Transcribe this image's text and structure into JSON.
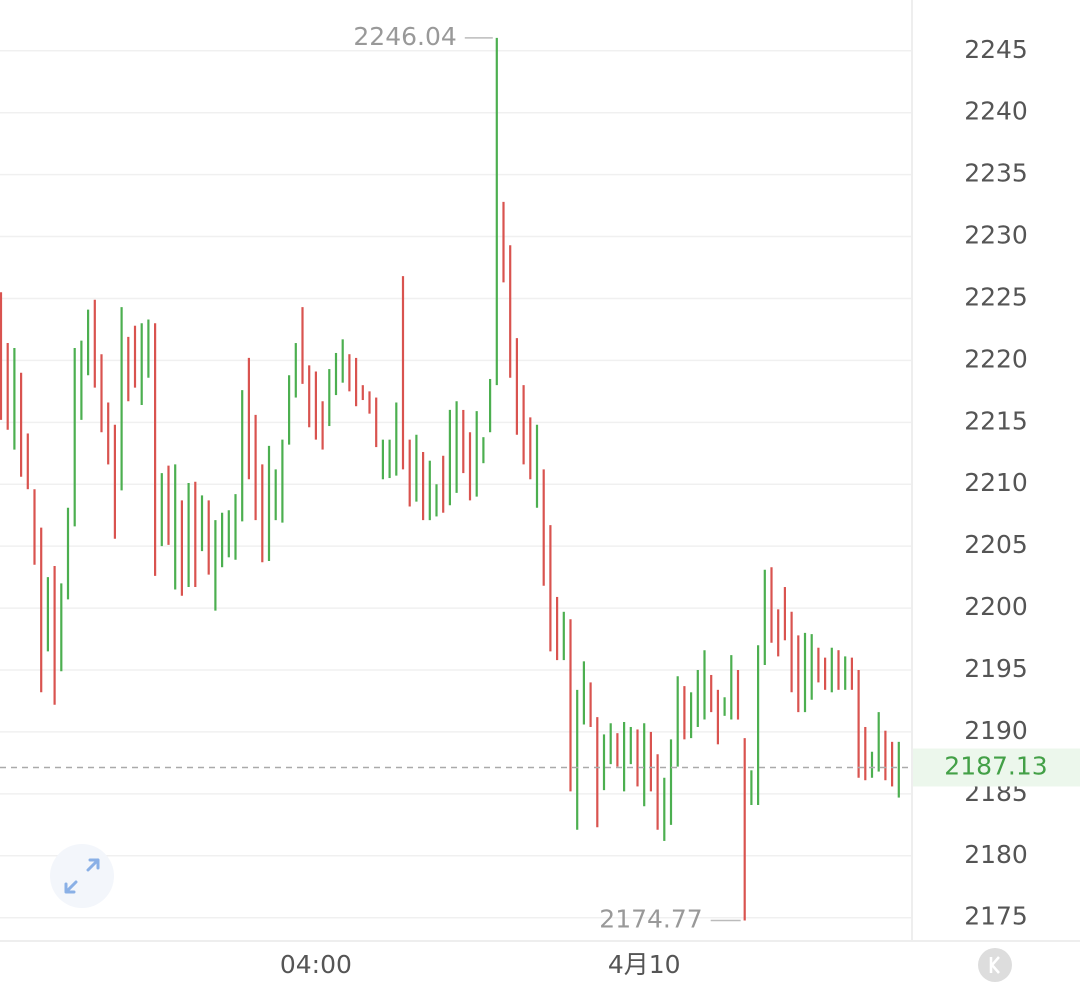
{
  "chart_data": {
    "type": "range_bar",
    "categories": [
      null,
      null,
      null,
      null,
      null,
      null,
      null,
      null,
      null,
      null,
      null,
      null,
      null,
      null,
      null,
      null,
      null,
      null,
      null,
      null,
      null,
      null,
      null,
      null,
      null,
      null,
      null,
      null,
      null,
      null,
      null,
      null,
      null,
      null,
      null,
      null,
      null,
      null,
      null,
      null,
      null,
      null,
      null,
      null,
      null,
      null,
      null,
      "04:00",
      null,
      null,
      null,
      null,
      null,
      null,
      null,
      null,
      null,
      null,
      null,
      null,
      null,
      null,
      null,
      null,
      null,
      null,
      null,
      null,
      null,
      null,
      null,
      null,
      null,
      null,
      null,
      null,
      null,
      null,
      null,
      null,
      null,
      null,
      null,
      null,
      null,
      null,
      null,
      null,
      null,
      null,
      null,
      null,
      null,
      null,
      null,
      null,
      "4月10",
      null,
      null,
      null,
      null,
      null,
      null,
      null,
      null,
      null,
      null,
      null,
      null,
      null,
      null,
      null,
      null,
      null,
      null,
      null,
      null,
      null,
      null,
      null,
      null,
      null,
      null,
      null,
      null,
      null,
      null,
      null,
      null,
      null,
      null,
      null,
      null,
      null,
      null
    ],
    "high": [
      2225.5,
      2221.4,
      2221.0,
      2219.0,
      2214.1,
      2209.6,
      2206.5,
      2202.5,
      2203.4,
      2202.0,
      2208.1,
      2221.0,
      2221.6,
      2224.1,
      2224.9,
      2220.5,
      2216.6,
      2214.8,
      2224.3,
      2221.9,
      2222.8,
      2223.0,
      2223.3,
      2223.0,
      2210.9,
      2211.5,
      2211.6,
      2208.7,
      2210.1,
      2210.2,
      2209.1,
      2208.7,
      2207.1,
      2207.7,
      2207.9,
      2209.2,
      2217.6,
      2220.2,
      2215.6,
      2211.6,
      2213.1,
      2211.2,
      2213.6,
      2218.8,
      2221.4,
      2224.3,
      2219.6,
      2219.1,
      2216.7,
      2219.3,
      2220.6,
      2221.7,
      2220.5,
      2220.2,
      2218.0,
      2217.5,
      2217.0,
      2213.6,
      2213.6,
      2216.6,
      2226.8,
      2213.6,
      2214.0,
      2212.6,
      2211.9,
      2210.0,
      2212.3,
      2216.0,
      2216.7,
      2216.0,
      2214.2,
      2215.9,
      2213.8,
      2218.5,
      2246.04,
      2232.8,
      2229.3,
      2221.8,
      2218.0,
      2215.4,
      2214.8,
      2211.2,
      2206.7,
      2200.9,
      2199.7,
      2199.1,
      2193.4,
      2195.7,
      2194.0,
      2191.2,
      2189.8,
      2190.7,
      2189.9,
      2190.8,
      2190.4,
      2190.2,
      2190.7,
      2190.0,
      2188.2,
      2186.3,
      2189.4,
      2194.5,
      2193.7,
      2193.2,
      2195.0,
      2196.6,
      2194.6,
      2193.4,
      2192.8,
      2196.2,
      2195.0,
      2189.5,
      2186.9,
      2197.0,
      2203.1,
      2203.3,
      2199.9,
      2201.7,
      2199.7,
      2197.8,
      2198.0,
      2197.9,
      2196.8,
      2196.0,
      2196.8,
      2196.6,
      2196.1,
      2196.0,
      2195.0,
      2190.4,
      2188.4,
      2191.6,
      2190.1,
      2189.2,
      2189.2
    ],
    "low": [
      2215.2,
      2214.4,
      2212.8,
      2210.6,
      2209.6,
      2203.5,
      2193.2,
      2196.5,
      2192.2,
      2194.9,
      2200.7,
      2206.6,
      2215.2,
      2218.8,
      2217.8,
      2214.2,
      2211.6,
      2205.6,
      2209.5,
      2216.7,
      2217.8,
      2216.4,
      2218.6,
      2202.6,
      2205.0,
      2205.1,
      2201.5,
      2201.0,
      2201.7,
      2201.7,
      2204.6,
      2202.7,
      2199.8,
      2203.3,
      2204.1,
      2203.9,
      2207.0,
      2210.4,
      2207.1,
      2203.7,
      2203.8,
      2207.1,
      2206.9,
      2213.2,
      2217.0,
      2218.1,
      2214.6,
      2213.6,
      2212.8,
      2214.7,
      2217.2,
      2218.2,
      2217.5,
      2216.3,
      2216.8,
      2215.7,
      2213.0,
      2210.4,
      2210.5,
      2210.7,
      2211.2,
      2208.2,
      2208.6,
      2207.1,
      2207.1,
      2207.4,
      2207.7,
      2208.3,
      2209.3,
      2210.9,
      2208.7,
      2209.0,
      2211.7,
      2214.2,
      2218.0,
      2226.3,
      2218.6,
      2214.0,
      2211.6,
      2210.4,
      2208.1,
      2201.8,
      2196.5,
      2195.8,
      2195.8,
      2185.2,
      2182.1,
      2190.6,
      2190.4,
      2182.3,
      2185.3,
      2187.4,
      2187.2,
      2185.2,
      2187.4,
      2185.6,
      2184.0,
      2185.2,
      2182.1,
      2181.2,
      2182.5,
      2187.2,
      2189.4,
      2189.5,
      2190.4,
      2191.0,
      2191.6,
      2189.0,
      2191.3,
      2191.0,
      2191.0,
      2174.77,
      2184.1,
      2184.1,
      2195.4,
      2197.2,
      2196.1,
      2197.4,
      2193.2,
      2191.6,
      2191.6,
      2192.6,
      2194.0,
      2193.4,
      2193.2,
      2193.4,
      2193.4,
      2193.4,
      2186.3,
      2186.1,
      2186.3,
      2186.8,
      2186.1,
      2185.6,
      2184.7
    ],
    "up": [
      false,
      false,
      true,
      false,
      false,
      false,
      false,
      true,
      false,
      true,
      true,
      true,
      true,
      true,
      false,
      false,
      false,
      false,
      true,
      false,
      false,
      true,
      true,
      false,
      true,
      false,
      true,
      false,
      true,
      false,
      true,
      false,
      true,
      true,
      true,
      true,
      true,
      false,
      false,
      false,
      true,
      true,
      true,
      true,
      true,
      false,
      false,
      false,
      false,
      true,
      true,
      true,
      false,
      false,
      false,
      false,
      false,
      true,
      true,
      true,
      false,
      false,
      true,
      false,
      true,
      true,
      false,
      true,
      true,
      false,
      false,
      true,
      true,
      true,
      true,
      false,
      false,
      false,
      false,
      false,
      true,
      false,
      false,
      false,
      true,
      false,
      true,
      true,
      false,
      false,
      true,
      true,
      false,
      true,
      true,
      false,
      true,
      false,
      false,
      true,
      true,
      true,
      false,
      true,
      true,
      true,
      false,
      false,
      true,
      true,
      false,
      false,
      true,
      true,
      true,
      false,
      false,
      false,
      false,
      false,
      true,
      true,
      false,
      false,
      true,
      false,
      true,
      false,
      false,
      false,
      true,
      true,
      false,
      false,
      true
    ],
    "up_color": "#4caf50",
    "down_color": "#d9534f",
    "last_price": 2187.13,
    "last_price_color": "#43a047",
    "high_mark_index": 74,
    "low_mark_index": 111,
    "ylim": [
      2173.2,
      2249.1
    ],
    "yticks": [
      2175,
      2180,
      2185,
      2190,
      2195,
      2200,
      2205,
      2210,
      2215,
      2220,
      2225,
      2230,
      2235,
      2240,
      2245
    ],
    "grid": true
  }
}
